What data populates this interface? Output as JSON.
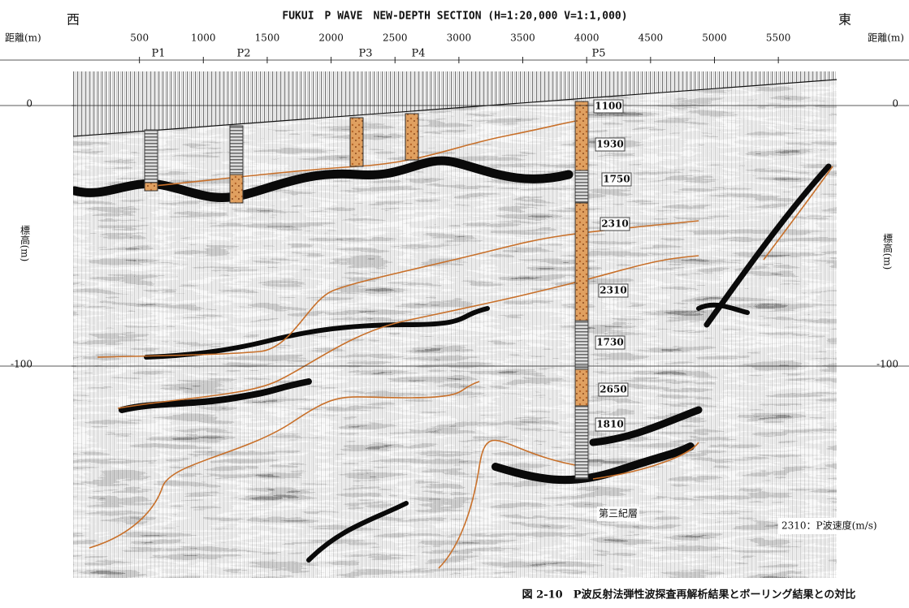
{
  "header": {
    "title": "FUKUI　P WAVE　NEW-DEPTH SECTION (H=1:20,000 V=1:1,000)",
    "west": "西",
    "east": "東",
    "distance_label_left": "距離(m)",
    "distance_label_right": "距離(m)"
  },
  "distance_ticks": [
    500,
    1000,
    1500,
    2000,
    2500,
    3000,
    3500,
    4000,
    4500,
    5000,
    5500
  ],
  "elevation_ticks": [
    0,
    -100
  ],
  "elevation_label": "標高(m)",
  "boreholes": [
    "P1",
    "P2",
    "P3",
    "P4",
    "P5"
  ],
  "velocities": [
    1100,
    1930,
    1750,
    2310,
    2310,
    1730,
    2650,
    1810
  ],
  "formation_label": "第三紀層",
  "legend": "2310：P波速度(m/s)",
  "caption": "図 2-10　P波反射法弾性波探査再解析結果とボーリング結果との対比"
}
